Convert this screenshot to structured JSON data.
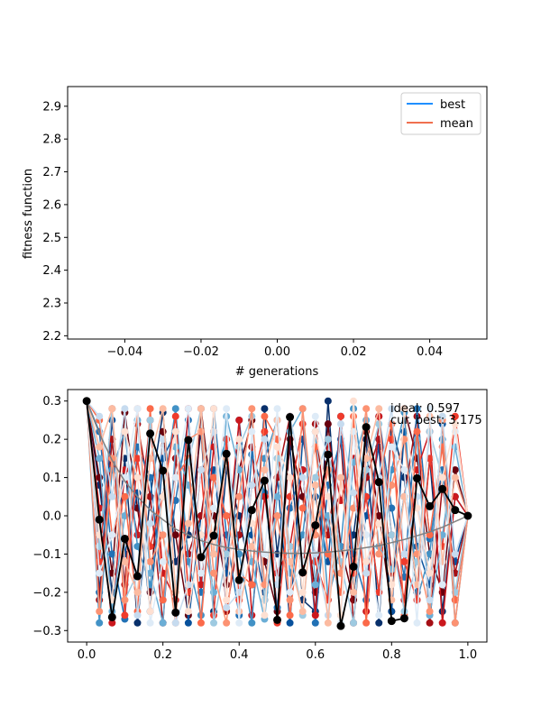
{
  "chart_data": [
    {
      "type": "line",
      "xlabel": "# generations",
      "ylabel": "fitness function",
      "xlim": [
        -0.055,
        0.055
      ],
      "ylim": [
        2.19,
        2.96
      ],
      "x_ticks": [
        "−0.04",
        "−0.02",
        "0.00",
        "0.02",
        "0.04"
      ],
      "x_tick_values": [
        -0.04,
        -0.02,
        0.0,
        0.02,
        0.04
      ],
      "y_ticks": [
        "2.2",
        "2.3",
        "2.4",
        "2.5",
        "2.6",
        "2.7",
        "2.8",
        "2.9"
      ],
      "y_tick_values": [
        2.2,
        2.3,
        2.4,
        2.5,
        2.6,
        2.7,
        2.8,
        2.9
      ],
      "legend_position": "top-right",
      "series": [
        {
          "name": "best",
          "color": "#1f8fff",
          "x": [],
          "y": []
        },
        {
          "name": "mean",
          "color": "#f07050",
          "x": [],
          "y": []
        }
      ]
    },
    {
      "type": "line",
      "xlim": [
        -0.05,
        1.05
      ],
      "ylim": [
        -0.33,
        0.33
      ],
      "x_ticks": [
        "0.0",
        "0.2",
        "0.4",
        "0.6",
        "0.8",
        "1.0"
      ],
      "x_tick_values": [
        0.0,
        0.2,
        0.4,
        0.6,
        0.8,
        1.0
      ],
      "y_ticks": [
        "−0.3",
        "−0.2",
        "−0.1",
        "0.0",
        "0.1",
        "0.2",
        "0.3"
      ],
      "y_tick_values": [
        -0.3,
        -0.2,
        -0.1,
        0.0,
        0.1,
        0.2,
        0.3
      ],
      "annotations": [
        "ideal: 0.597",
        "cur. best: 3.175"
      ],
      "x": [
        0.0,
        0.0333,
        0.0667,
        0.1,
        0.1333,
        0.1667,
        0.2,
        0.2333,
        0.2667,
        0.3,
        0.3333,
        0.3667,
        0.4,
        0.4333,
        0.4667,
        0.5,
        0.5333,
        0.5667,
        0.6,
        0.6333,
        0.6667,
        0.7,
        0.7333,
        0.7667,
        0.8,
        0.8333,
        0.8667,
        0.9,
        0.9333,
        0.9667,
        1.0
      ],
      "ideal_curve": {
        "color": "#808080",
        "y": [
          0.3,
          0.215,
          0.145,
          0.09,
          0.05,
          0.015,
          -0.01,
          -0.035,
          -0.05,
          -0.065,
          -0.075,
          -0.083,
          -0.088,
          -0.092,
          -0.095,
          -0.097,
          -0.098,
          -0.098,
          -0.097,
          -0.095,
          -0.092,
          -0.088,
          -0.083,
          -0.078,
          -0.07,
          -0.062,
          -0.052,
          -0.042,
          -0.03,
          -0.015,
          0.0
        ]
      },
      "best_curve": {
        "color": "#000000",
        "y": [
          0.3,
          -0.01,
          -0.265,
          -0.06,
          -0.158,
          0.215,
          0.118,
          -0.253,
          0.198,
          -0.108,
          -0.052,
          0.162,
          -0.168,
          0.015,
          0.092,
          -0.272,
          0.258,
          -0.148,
          -0.025,
          0.16,
          -0.288,
          -0.133,
          0.232,
          0.088,
          -0.275,
          -0.268,
          0.098,
          0.025,
          0.07,
          0.015,
          0.0
        ]
      },
      "population_blue": [
        {
          "color": "#08306b",
          "y": [
            0.3,
            0.08,
            -0.2,
            0.15,
            -0.28,
            0.05,
            0.27,
            -0.12,
            -0.05,
            0.22,
            -0.25,
            0.12,
            0.0,
            -0.18,
            0.28,
            -0.1,
            0.18,
            -0.22,
            -0.25,
            0.3,
            -0.15,
            -0.05,
            0.2,
            -0.28,
            0.24,
            0.1,
            -0.2,
            0.15,
            -0.25,
            0.05,
            0.0
          ]
        },
        {
          "color": "#08519c",
          "y": [
            0.3,
            -0.2,
            0.25,
            -0.1,
            0.06,
            -0.25,
            0.15,
            0.22,
            -0.28,
            0.0,
            0.12,
            -0.15,
            0.25,
            -0.05,
            -0.2,
            0.1,
            -0.28,
            0.2,
            0.05,
            -0.12,
            0.26,
            -0.2,
            0.0,
            0.18,
            -0.25,
            0.22,
            -0.08,
            -0.18,
            0.24,
            -0.12,
            0.0
          ]
        },
        {
          "color": "#2171b5",
          "y": [
            0.3,
            0.22,
            -0.1,
            -0.27,
            0.18,
            0.1,
            -0.22,
            0.04,
            0.25,
            -0.2,
            0.28,
            -0.05,
            -0.26,
            0.16,
            0.06,
            -0.24,
            0.02,
            0.12,
            -0.28,
            0.08,
            0.2,
            -0.1,
            -0.22,
            0.26,
            0.02,
            -0.16,
            0.28,
            -0.06,
            0.12,
            -0.22,
            0.0
          ]
        },
        {
          "color": "#4292c6",
          "y": [
            0.3,
            -0.28,
            0.12,
            0.22,
            -0.08,
            -0.18,
            0.05,
            0.28,
            -0.12,
            -0.26,
            0.1,
            0.2,
            -0.1,
            -0.28,
            0.15,
            0.25,
            -0.15,
            -0.05,
            0.22,
            -0.22,
            -0.08,
            0.28,
            0.05,
            -0.2,
            0.12,
            0.27,
            -0.22,
            -0.1,
            0.2,
            -0.28,
            0.0
          ]
        },
        {
          "color": "#6baed6",
          "y": [
            0.3,
            0.15,
            -0.25,
            0.0,
            0.25,
            -0.15,
            -0.28,
            0.18,
            0.08,
            -0.05,
            -0.2,
            0.26,
            0.12,
            -0.12,
            -0.27,
            0.05,
            0.22,
            0.28,
            -0.18,
            0.0,
            -0.26,
            0.14,
            0.25,
            -0.08,
            -0.14,
            0.05,
            0.2,
            -0.26,
            -0.05,
            0.18,
            0.0
          ]
        },
        {
          "color": "#9ecae1",
          "y": [
            0.3,
            -0.08,
            0.28,
            -0.22,
            -0.15,
            0.25,
            -0.05,
            -0.2,
            0.14,
            0.28,
            -0.28,
            -0.1,
            0.18,
            0.26,
            -0.22,
            0.15,
            -0.08,
            -0.26,
            0.1,
            0.2,
            -0.12,
            -0.28,
            0.12,
            0.24,
            -0.05,
            -0.25,
            -0.12,
            0.22,
            0.1,
            -0.2,
            0.0
          ]
        },
        {
          "color": "#c6dbef",
          "y": [
            0.3,
            0.26,
            0.05,
            0.28,
            -0.26,
            -0.02,
            0.2,
            -0.28,
            -0.18,
            0.12,
            0.22,
            -0.24,
            -0.2,
            0.08,
            0.2,
            -0.18,
            0.26,
            0.1,
            -0.1,
            -0.26,
            0.24,
            0.06,
            -0.15,
            0.1,
            0.28,
            -0.1,
            0.05,
            -0.22,
            0.26,
            -0.1,
            0.0
          ]
        },
        {
          "color": "#deebf7",
          "y": [
            0.3,
            -0.15,
            -0.05,
            0.1,
            0.28,
            -0.28,
            -0.12,
            0.1,
            0.28,
            -0.15,
            0.02,
            0.28,
            -0.28,
            0.22,
            -0.1,
            0.28,
            -0.2,
            -0.12,
            0.26,
            0.15,
            -0.28,
            0.22,
            -0.05,
            -0.26,
            0.18,
            0.12,
            -0.28,
            0.28,
            -0.18,
            0.22,
            0.0
          ]
        }
      ],
      "population_red": [
        {
          "color": "#67000d",
          "y": [
            0.3,
            0.1,
            -0.15,
            0.27,
            0.02,
            -0.2,
            0.22,
            -0.05,
            -0.26,
            0.28,
            0.0,
            -0.18,
            0.12,
            0.25,
            -0.12,
            -0.25,
            0.2,
            0.05,
            -0.2,
            0.24,
            -0.08,
            -0.22,
            0.22,
            0.0,
            -0.25,
            0.28,
            0.15,
            -0.1,
            -0.2,
            0.12,
            0.0
          ]
        },
        {
          "color": "#a50f15",
          "y": [
            0.3,
            -0.22,
            0.2,
            -0.18,
            0.24,
            0.05,
            -0.28,
            0.15,
            -0.1,
            0.0,
            0.22,
            -0.25,
            -0.05,
            0.18,
            -0.22,
            0.1,
            0.26,
            -0.15,
            0.24,
            -0.05,
            0.2,
            -0.28,
            0.1,
            0.2,
            -0.15,
            0.05,
            0.26,
            -0.28,
            0.08,
            -0.15,
            0.0
          ]
        },
        {
          "color": "#cb181d",
          "y": [
            0.3,
            0.02,
            -0.28,
            0.12,
            -0.05,
            0.25,
            -0.15,
            -0.22,
            0.28,
            -0.18,
            0.18,
            -0.1,
            0.25,
            -0.26,
            0.05,
            -0.15,
            -0.08,
            0.12,
            -0.26,
            0.2,
            0.04,
            0.15,
            -0.25,
            0.26,
            -0.05,
            -0.22,
            0.12,
            0.22,
            -0.28,
            0.05,
            0.0
          ]
        },
        {
          "color": "#ef3b2c",
          "y": [
            0.3,
            -0.12,
            0.28,
            -0.26,
            0.15,
            -0.08,
            0.05,
            0.26,
            -0.2,
            0.12,
            -0.26,
            0.2,
            -0.22,
            0.08,
            0.22,
            -0.28,
            0.05,
            0.24,
            -0.12,
            -0.22,
            0.26,
            -0.15,
            0.05,
            -0.2,
            0.2,
            -0.12,
            -0.22,
            0.15,
            -0.08,
            0.26,
            0.0
          ]
        },
        {
          "color": "#fb6a4a",
          "y": [
            0.3,
            0.25,
            -0.05,
            0.05,
            -0.25,
            0.28,
            -0.22,
            0.1,
            0.15,
            -0.28,
            0.1,
            0.0,
            -0.15,
            -0.18,
            0.26,
            0.2,
            -0.26,
            0.02,
            0.18,
            -0.1,
            -0.2,
            0.26,
            -0.28,
            0.1,
            0.24,
            -0.26,
            0.22,
            -0.05,
            0.18,
            -0.22,
            0.0
          ]
        },
        {
          "color": "#fc9272",
          "y": [
            0.3,
            -0.25,
            0.15,
            -0.22,
            0.28,
            -0.12,
            -0.05,
            -0.28,
            0.2,
            0.22,
            -0.15,
            -0.28,
            0.05,
            0.28,
            -0.18,
            0.0,
            -0.22,
            0.28,
            -0.05,
            0.12,
            -0.15,
            0.02,
            0.28,
            -0.1,
            0.08,
            0.2,
            -0.1,
            -0.25,
            0.25,
            -0.28,
            0.0
          ]
        },
        {
          "color": "#fcbba1",
          "y": [
            0.3,
            0.18,
            0.28,
            -0.12,
            -0.2,
            0.15,
            0.28,
            -0.2,
            -0.02,
            0.28,
            -0.1,
            0.15,
            -0.25,
            -0.08,
            0.12,
            0.25,
            -0.12,
            -0.25,
            0.08,
            -0.28,
            0.1,
            -0.2,
            0.15,
            0.28,
            -0.22,
            0.05,
            -0.18,
            0.26,
            -0.12,
            0.1,
            0.0
          ]
        },
        {
          "color": "#fee0d2",
          "y": [
            0.3,
            -0.05,
            -0.22,
            0.22,
            0.1,
            -0.25,
            0.05,
            0.22,
            -0.25,
            -0.05,
            0.28,
            -0.22,
            0.2,
            -0.02,
            -0.26,
            0.18,
            0.1,
            -0.2,
            0.22,
            0.05,
            -0.26,
            0.3,
            -0.12,
            -0.02,
            -0.18,
            0.28,
            0.02,
            -0.15,
            0.1,
            0.24,
            0.0
          ]
        }
      ]
    }
  ]
}
